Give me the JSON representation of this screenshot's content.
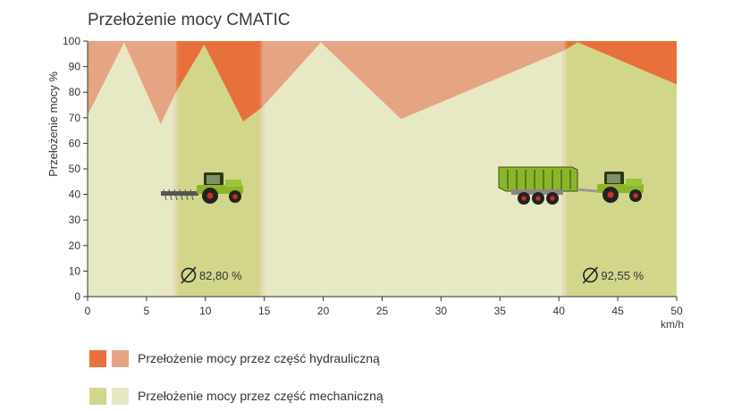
{
  "chart_data": {
    "type": "area",
    "title": "Przełożenie mocy CMATIC",
    "ylabel": "Przełożenie mocy %",
    "xlabel": "km/h",
    "xlim": [
      0,
      50
    ],
    "ylim": [
      0,
      100
    ],
    "x_ticks": [
      0,
      5,
      10,
      15,
      20,
      25,
      30,
      35,
      40,
      45,
      50
    ],
    "y_ticks": [
      0,
      10,
      20,
      30,
      40,
      50,
      60,
      70,
      80,
      90,
      100
    ],
    "series": [
      {
        "name": "Przełożenie mocy przez część mechaniczną",
        "x": [
          0,
          3.1,
          6.2,
          7.5,
          9.9,
          13.2,
          14.8,
          19.8,
          26.6,
          40.5,
          41.6,
          50
        ],
        "y": [
          71,
          99.5,
          67.5,
          80,
          98.5,
          68.5,
          74,
          99.5,
          69.5,
          96.5,
          99.5,
          83
        ]
      },
      {
        "name": "Przełożenie mocy przez część hydrauliczną",
        "note_complement": true
      }
    ],
    "highlight_ranges": [
      {
        "from": 7.5,
        "to": 14.8,
        "average_label": "82,80 %"
      },
      {
        "from": 40.5,
        "to": 50,
        "average_label": "92,55 %"
      }
    ],
    "colors": {
      "hydraulic_light": "#e5a583",
      "hydraulic_dark": "#e8703a",
      "mechanical_light": "#e7e8c4",
      "mechanical_dark": "#d2d68b"
    }
  },
  "legend": {
    "hydraulic_label": "Przełożenie mocy przez część hydrauliczną",
    "mechanical_label": "Przełożenie mocy przez część mechaniczną"
  },
  "icons": [
    "tractor-with-mower-icon",
    "tractor-with-trailer-icon"
  ]
}
